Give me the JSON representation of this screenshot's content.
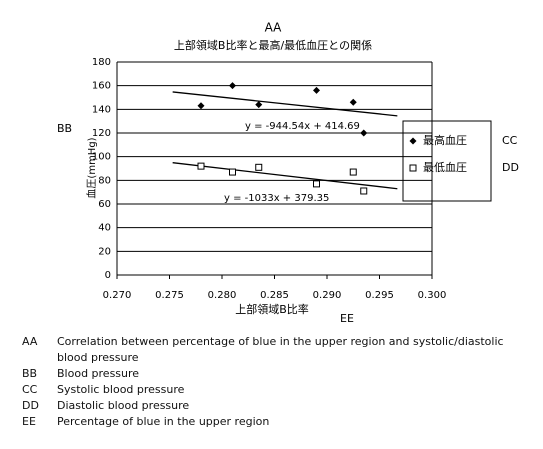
{
  "chart_data": {
    "type": "scatter",
    "top_label": "AA",
    "title": "上部領域B比率と最高/最低血圧との関係",
    "x_label": "上部領域B比率",
    "x_label_key": "EE",
    "y_label": "血圧(mmHg)",
    "y_label_key": "BB",
    "xlim": [
      0.27,
      0.3
    ],
    "xticks": [
      {
        "value": 0.27,
        "label": "0.270"
      },
      0.275,
      {
        "value": 0.28,
        "label": "0.280"
      },
      0.285,
      {
        "value": 0.29,
        "label": "0.290"
      },
      0.295,
      {
        "value": 0.3,
        "label": "0.300"
      }
    ],
    "ylim": [
      0,
      180
    ],
    "yticks": [
      0,
      20,
      40,
      60,
      80,
      100,
      120,
      140,
      160,
      180
    ],
    "grid": true,
    "legend": "right",
    "series": [
      {
        "name": "最高血圧",
        "key": "CC",
        "marker": "diamond",
        "color": "#000000",
        "x": [
          0.278,
          0.281,
          0.2835,
          0.289,
          0.2925,
          0.2935
        ],
        "values": [
          143,
          160,
          144,
          156,
          146,
          120
        ]
      },
      {
        "name": "最低血圧",
        "key": "DD",
        "marker": "square",
        "color": "#000000",
        "x": [
          0.278,
          0.281,
          0.2835,
          0.289,
          0.2925,
          0.2935
        ],
        "values": [
          92,
          87,
          91,
          77,
          87,
          71
        ]
      }
    ],
    "trendlines": [
      {
        "label": "y = -944.54x + 414.69",
        "x": [
          0.2753,
          0.2967
        ],
        "values": [
          154.7,
          134.5
        ]
      },
      {
        "label": "y = -1033x + 379.35",
        "x": [
          0.2753,
          0.2967
        ],
        "values": [
          94.9,
          72.9
        ]
      }
    ]
  },
  "notes": [
    {
      "key": "AA",
      "text": "Correlation between percentage of blue in the upper region and systolic/diastolic blood pressure"
    },
    {
      "key": "BB",
      "text": "Blood pressure"
    },
    {
      "key": "CC",
      "text": "Systolic blood pressure"
    },
    {
      "key": "DD",
      "text": "Diastolic blood pressure"
    },
    {
      "key": "EE",
      "text": "Percentage of blue in the upper region"
    }
  ]
}
